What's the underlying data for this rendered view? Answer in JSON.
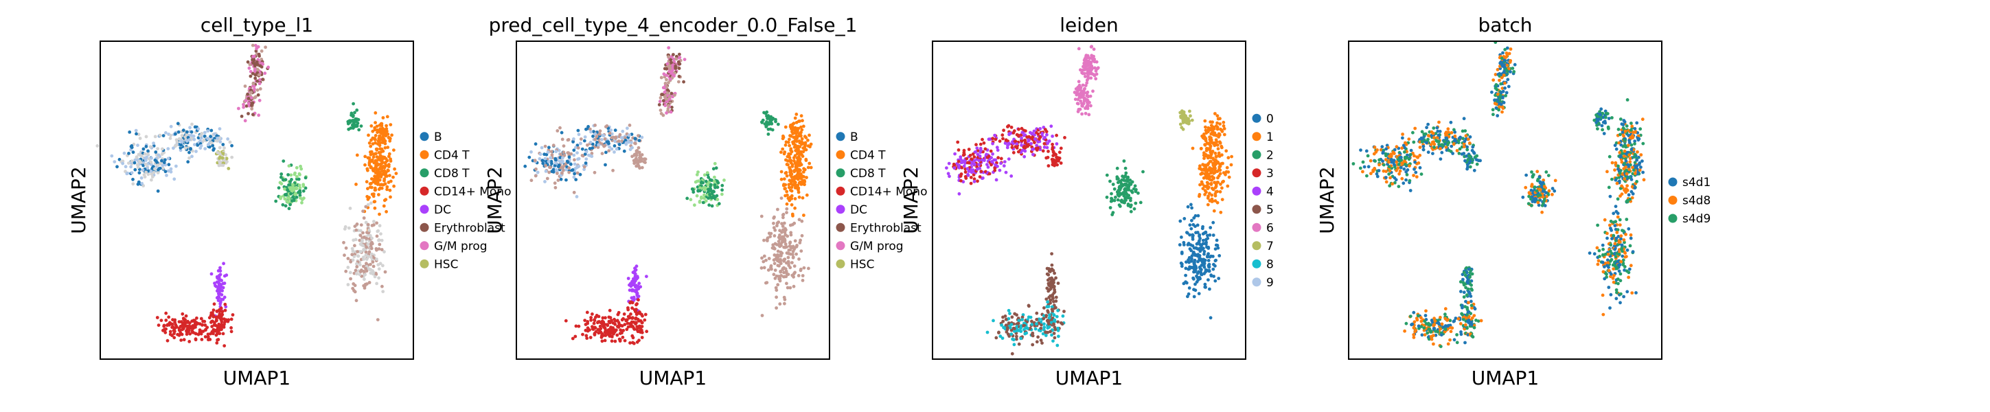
{
  "figure": {
    "palette": {
      "B": "#1f77b4",
      "CD4 T": "#ff7f0e",
      "CD8 T": "#279e68",
      "CD14+ Mono": "#d62728",
      "DC": "#aa40fc",
      "Erythroblast": "#8c564b",
      "G/M prog": "#e377c2",
      "HSC": "#b5bd61",
      "unassigned": "#d3d3d3",
      "light-blue": "#aec7e8",
      "light-green": "#98df8a",
      "tan": "#c49c94",
      "teal": "#17becf",
      "s4d1": "#1f77b4",
      "s4d8": "#ff7f0e",
      "s4d9": "#279e68"
    }
  },
  "chart_data": [
    {
      "type": "scatter",
      "title": "cell_type_l1",
      "xlabel": "UMAP1",
      "ylabel": "UMAP2",
      "ticks": "none",
      "grid": false,
      "legend_position": "right",
      "legend": [
        {
          "label": "B",
          "color": "#1f77b4"
        },
        {
          "label": "CD4 T",
          "color": "#ff7f0e"
        },
        {
          "label": "CD8 T",
          "color": "#279e68"
        },
        {
          "label": "CD14+ Mono",
          "color": "#d62728"
        },
        {
          "label": "DC",
          "color": "#aa40fc"
        },
        {
          "label": "Erythroblast",
          "color": "#8c564b"
        },
        {
          "label": "G/M prog",
          "color": "#e377c2"
        },
        {
          "label": "HSC",
          "color": "#b5bd61"
        }
      ],
      "clusters": [
        {
          "id": "top-spike",
          "colors": [
            "#8c564b",
            "#e377c2",
            "#c49c94"
          ]
        },
        {
          "id": "left-arm",
          "colors": [
            "#d3d3d3",
            "#aec7e8",
            "#1f77b4"
          ]
        },
        {
          "id": "small-knot",
          "colors": [
            "#b5bd61",
            "#d3d3d3"
          ]
        },
        {
          "id": "center-blob",
          "colors": [
            "#98df8a",
            "#279e68"
          ]
        },
        {
          "id": "right-top-dot",
          "colors": [
            "#279e68"
          ]
        },
        {
          "id": "right-arm",
          "colors": [
            "#ff7f0e"
          ]
        },
        {
          "id": "right-bottom",
          "colors": [
            "#d3d3d3",
            "#c49c94"
          ]
        },
        {
          "id": "bottom-stem",
          "colors": [
            "#aa40fc"
          ]
        },
        {
          "id": "bottom-crescent",
          "colors": [
            "#d62728"
          ]
        }
      ]
    },
    {
      "type": "scatter",
      "title": "pred_cell_type_4_encoder_0.0_False_1",
      "xlabel": "UMAP1",
      "ylabel": "UMAP2",
      "ticks": "none",
      "grid": false,
      "legend_position": "right",
      "legend": [
        {
          "label": "B",
          "color": "#1f77b4"
        },
        {
          "label": "CD4 T",
          "color": "#ff7f0e"
        },
        {
          "label": "CD8 T",
          "color": "#279e68"
        },
        {
          "label": "CD14+ Mono",
          "color": "#d62728"
        },
        {
          "label": "DC",
          "color": "#aa40fc"
        },
        {
          "label": "Erythroblast",
          "color": "#8c564b"
        },
        {
          "label": "G/M prog",
          "color": "#e377c2"
        },
        {
          "label": "HSC",
          "color": "#b5bd61"
        }
      ],
      "clusters": [
        {
          "id": "top-spike",
          "colors": [
            "#8c564b",
            "#e377c2",
            "#c49c94"
          ]
        },
        {
          "id": "left-arm",
          "colors": [
            "#c49c94",
            "#aec7e8",
            "#1f77b4"
          ]
        },
        {
          "id": "small-knot",
          "colors": [
            "#c49c94"
          ]
        },
        {
          "id": "center-blob",
          "colors": [
            "#98df8a",
            "#279e68"
          ]
        },
        {
          "id": "right-top-dot",
          "colors": [
            "#279e68"
          ]
        },
        {
          "id": "right-arm",
          "colors": [
            "#ff7f0e"
          ]
        },
        {
          "id": "right-bottom",
          "colors": [
            "#c49c94"
          ]
        },
        {
          "id": "bottom-stem",
          "colors": [
            "#aa40fc"
          ]
        },
        {
          "id": "bottom-crescent",
          "colors": [
            "#d62728"
          ]
        }
      ]
    },
    {
      "type": "scatter",
      "title": "leiden",
      "xlabel": "UMAP1",
      "ylabel": "UMAP2",
      "ticks": "none",
      "grid": false,
      "legend_position": "right",
      "legend": [
        {
          "label": "0",
          "color": "#1f77b4"
        },
        {
          "label": "1",
          "color": "#ff7f0e"
        },
        {
          "label": "2",
          "color": "#279e68"
        },
        {
          "label": "3",
          "color": "#d62728"
        },
        {
          "label": "4",
          "color": "#aa40fc"
        },
        {
          "label": "5",
          "color": "#8c564b"
        },
        {
          "label": "6",
          "color": "#e377c2"
        },
        {
          "label": "7",
          "color": "#b5bd61"
        },
        {
          "label": "8",
          "color": "#17becf"
        },
        {
          "label": "9",
          "color": "#aec7e8"
        }
      ],
      "clusters": [
        {
          "id": "top-spike",
          "colors": [
            "#e377c2"
          ]
        },
        {
          "id": "left-arm",
          "colors": [
            "#aa40fc",
            "#d62728"
          ]
        },
        {
          "id": "small-knot",
          "colors": [
            "#d62728"
          ]
        },
        {
          "id": "center-blob",
          "colors": [
            "#279e68"
          ]
        },
        {
          "id": "right-top-dot",
          "colors": [
            "#b5bd61"
          ]
        },
        {
          "id": "right-arm",
          "colors": [
            "#ff7f0e"
          ]
        },
        {
          "id": "right-bottom",
          "colors": [
            "#1f77b4"
          ]
        },
        {
          "id": "bottom-stem",
          "colors": [
            "#8c564b"
          ]
        },
        {
          "id": "bottom-crescent",
          "colors": [
            "#8c564b",
            "#17becf"
          ]
        }
      ]
    },
    {
      "type": "scatter",
      "title": "batch",
      "xlabel": "UMAP1",
      "ylabel": "UMAP2",
      "ticks": "none",
      "grid": false,
      "legend_position": "right",
      "legend": [
        {
          "label": "s4d1",
          "color": "#1f77b4"
        },
        {
          "label": "s4d8",
          "color": "#ff7f0e"
        },
        {
          "label": "s4d9",
          "color": "#279e68"
        }
      ],
      "clusters": [
        {
          "id": "top-spike",
          "colors": [
            "#1f77b4",
            "#279e68",
            "#ff7f0e"
          ]
        },
        {
          "id": "left-arm",
          "colors": [
            "#1f77b4",
            "#ff7f0e",
            "#279e68"
          ]
        },
        {
          "id": "small-knot",
          "colors": [
            "#1f77b4",
            "#279e68"
          ]
        },
        {
          "id": "center-blob",
          "colors": [
            "#1f77b4",
            "#279e68",
            "#ff7f0e"
          ]
        },
        {
          "id": "right-top-dot",
          "colors": [
            "#1f77b4",
            "#279e68"
          ]
        },
        {
          "id": "right-arm",
          "colors": [
            "#1f77b4",
            "#279e68",
            "#ff7f0e"
          ]
        },
        {
          "id": "right-bottom",
          "colors": [
            "#1f77b4",
            "#ff7f0e",
            "#279e68"
          ]
        },
        {
          "id": "bottom-stem",
          "colors": [
            "#1f77b4",
            "#279e68"
          ]
        },
        {
          "id": "bottom-crescent",
          "colors": [
            "#1f77b4",
            "#ff7f0e",
            "#279e68"
          ]
        }
      ]
    }
  ]
}
